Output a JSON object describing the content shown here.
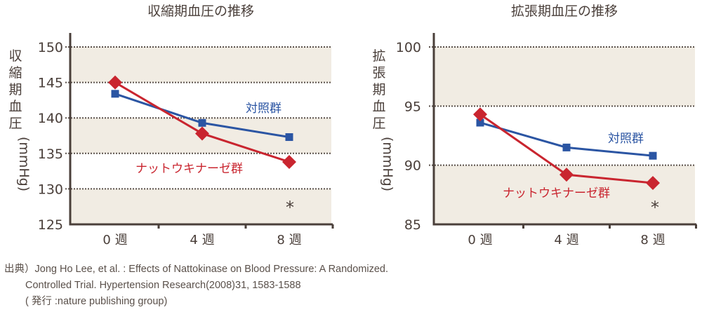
{
  "colors": {
    "control": "#2b55a3",
    "nattokinase": "#c9252f",
    "band": "#f1ece3",
    "axis": "#4a3f3a",
    "grid": "#5a504a"
  },
  "chart_data": [
    {
      "type": "line",
      "title": "収縮期血圧の推移",
      "ylabel": "収縮期血圧（mmHg）",
      "ylabel_chars": [
        "収",
        "縮",
        "期",
        "血",
        "圧"
      ],
      "ylabel_unit": "(mmHg)",
      "xlabel": "",
      "categories": [
        "0週",
        "4週",
        "8週"
      ],
      "yticks": [
        125,
        130,
        135,
        140,
        145,
        150
      ],
      "ylim": [
        125,
        150
      ],
      "grid": true,
      "series": [
        {
          "name": "対照群",
          "marker": "square",
          "values": [
            143.4,
            139.3,
            137.3
          ]
        },
        {
          "name": "ナットウキナーゼ群",
          "marker": "diamond",
          "values": [
            145.0,
            137.8,
            133.8
          ]
        }
      ],
      "annotations": [
        "*"
      ],
      "significance_at": "8週"
    },
    {
      "type": "line",
      "title": "拡張期血圧の推移",
      "ylabel": "拡張期血圧（mmHg）",
      "ylabel_chars": [
        "拡",
        "張",
        "期",
        "血",
        "圧"
      ],
      "ylabel_unit": "(mmHg)",
      "xlabel": "",
      "categories": [
        "0週",
        "4週",
        "8週"
      ],
      "yticks": [
        85,
        90,
        95,
        100
      ],
      "ylim": [
        85,
        100
      ],
      "grid": true,
      "series": [
        {
          "name": "対照群",
          "marker": "square",
          "values": [
            93.6,
            91.5,
            90.8
          ]
        },
        {
          "name": "ナットウキナーゼ群",
          "marker": "diamond",
          "values": [
            94.3,
            89.2,
            88.5
          ]
        }
      ],
      "annotations": [
        "*"
      ],
      "significance_at": "8週"
    }
  ],
  "source": {
    "prefix": "出典）",
    "line1": "Jong Ho Lee, et al. : Effects of Nattokinase on Blood Pressure: A Randomized.",
    "line2": "Controlled Trial. Hypertension Research(2008)31, 1583-1588",
    "line3": "( 発行 :nature publishing group)"
  }
}
